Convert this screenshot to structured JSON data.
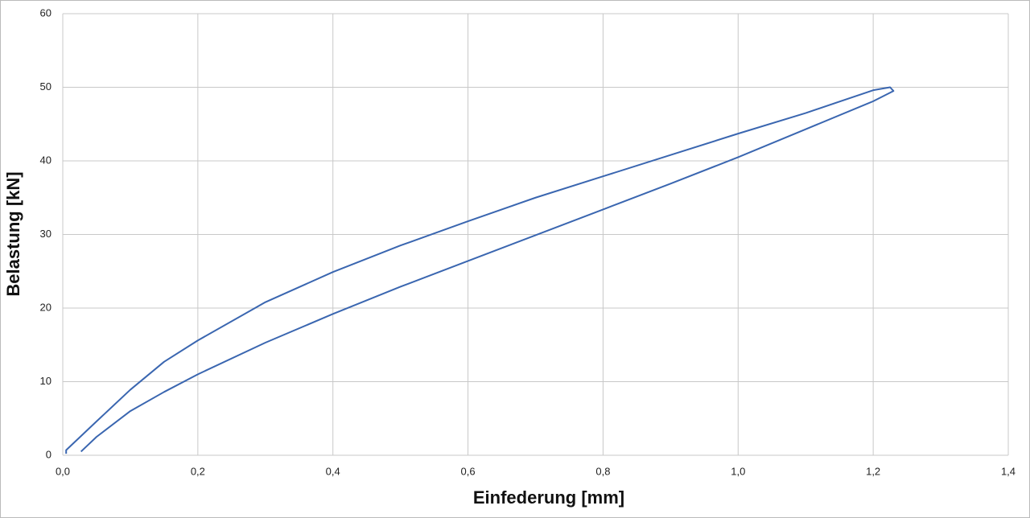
{
  "chart_data": {
    "type": "line",
    "xlabel": "Einfederung [mm]",
    "ylabel": "Belastung [kN]",
    "x": [
      0.027,
      0.05,
      0.1,
      0.15,
      0.2,
      0.3,
      0.4,
      0.5,
      0.6,
      0.7,
      0.8,
      0.9,
      1.0,
      1.1,
      1.2,
      1.23,
      1.225,
      1.2,
      1.1,
      1.0,
      0.9,
      0.8,
      0.7,
      0.6,
      0.5,
      0.4,
      0.3,
      0.2,
      0.15,
      0.1,
      0.05,
      0.005,
      0.005
    ],
    "series": [
      {
        "color": "#3a66b0",
        "values": [
          0.5,
          2.5,
          6.0,
          8.6,
          11.0,
          15.3,
          19.2,
          22.9,
          26.4,
          29.9,
          33.4,
          36.9,
          40.5,
          44.3,
          48.1,
          49.5,
          50.0,
          49.6,
          46.5,
          43.7,
          40.8,
          37.9,
          35.0,
          31.8,
          28.5,
          24.9,
          20.8,
          15.6,
          12.7,
          8.9,
          4.6,
          0.7,
          0.2
        ]
      }
    ],
    "xlim": [
      0,
      1.4
    ],
    "xticks": [
      {
        "value": 0,
        "label": "0,0"
      },
      {
        "value": 0.2,
        "label": "0,2"
      },
      {
        "value": 0.4,
        "label": "0,4"
      },
      {
        "value": 0.6,
        "label": "0,6"
      },
      {
        "value": 0.8,
        "label": "0,8"
      },
      {
        "value": 1.0,
        "label": "1,0"
      },
      {
        "value": 1.2,
        "label": "1,2"
      },
      {
        "value": 1.4,
        "label": "1,4"
      }
    ],
    "ylim": [
      0,
      60
    ],
    "yticks": [
      0,
      10,
      20,
      30,
      40,
      50,
      60
    ],
    "grid": true
  }
}
